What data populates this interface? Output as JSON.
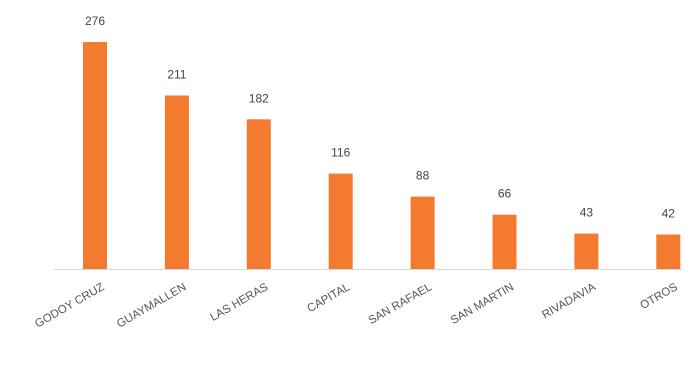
{
  "chart_data": {
    "type": "bar",
    "categories": [
      "GODOY CRUZ",
      "GUAYMALLEN",
      "LAS HERAS",
      "CAPITAL",
      "SAN RAFAEL",
      "SAN MARTIN",
      "RIVADAVIA",
      "OTROS"
    ],
    "values": [
      276,
      211,
      182,
      116,
      88,
      66,
      43,
      42
    ],
    "title": "",
    "xlabel": "",
    "ylabel": "",
    "ylim": [
      0,
      276
    ],
    "grid": false,
    "legend": "none",
    "bar_color": "#f47a30",
    "axis_color": "#d9d9d9",
    "label_color": "#555555"
  }
}
